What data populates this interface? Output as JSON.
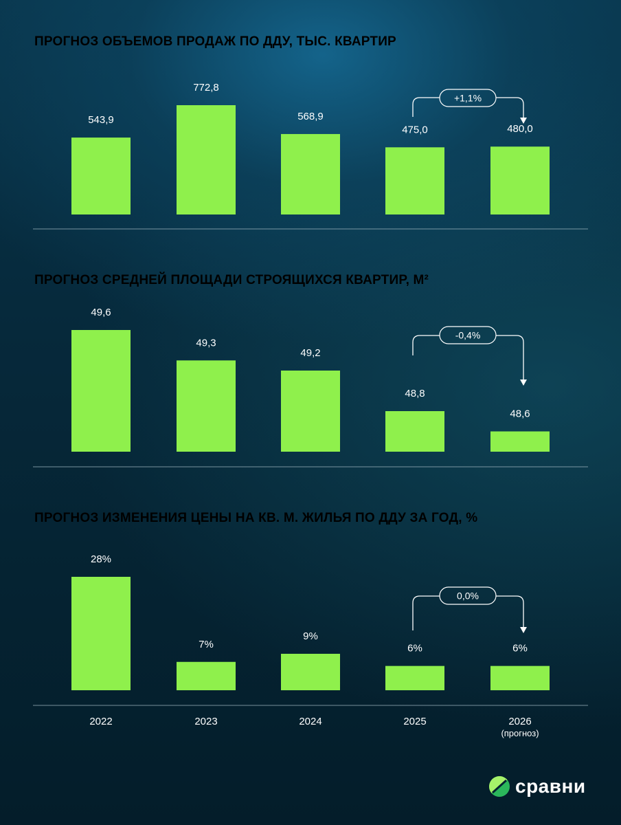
{
  "years": [
    "2022",
    "2023",
    "2024",
    "2025",
    "2026"
  ],
  "forecast_note": "(прогноз)",
  "brand": {
    "name": "сравни",
    "colors": {
      "bar": "#8ff04c",
      "logo_light": "#a6f26a",
      "logo_dark": "#2bb75b"
    }
  },
  "chart_data": [
    {
      "type": "bar",
      "title": "ПРОГНОЗ ОБЪЕМОВ ПРОДАЖ ПО ДДУ, ТЫС. КВАРТИР",
      "categories": [
        "2022",
        "2023",
        "2024",
        "2025",
        "2026"
      ],
      "values": [
        543.9,
        772.8,
        568.9,
        475.0,
        480.0
      ],
      "value_labels": [
        "543,9",
        "772,8",
        "568,9",
        "475,0",
        "480,0"
      ],
      "delta_label": "+1,1%",
      "ylim": [
        0,
        800
      ]
    },
    {
      "type": "bar",
      "title": "ПРОГНОЗ СРЕДНЕЙ ПЛОЩАДИ СТРОЯЩИХСЯ КВАРТИР, М²",
      "categories": [
        "2022",
        "2023",
        "2024",
        "2025",
        "2026"
      ],
      "values": [
        49.6,
        49.3,
        49.2,
        48.8,
        48.6
      ],
      "value_labels": [
        "49,6",
        "49,3",
        "49,2",
        "48,8",
        "48,6"
      ],
      "delta_label": "-0,4%",
      "ylim": [
        48.4,
        49.65
      ]
    },
    {
      "type": "bar",
      "title": "ПРОГНОЗ ИЗМЕНЕНИЯ ЦЕНЫ НА КВ. М. ЖИЛЬЯ ПО ДДУ ЗА ГОД, %",
      "categories": [
        "2022",
        "2023",
        "2024",
        "2025",
        "2026"
      ],
      "values": [
        28,
        7,
        9,
        6,
        6
      ],
      "value_labels": [
        "28%",
        "7%",
        "9%",
        "6%",
        "6%"
      ],
      "delta_label": "0,0%",
      "ylim": [
        0,
        30
      ]
    }
  ]
}
